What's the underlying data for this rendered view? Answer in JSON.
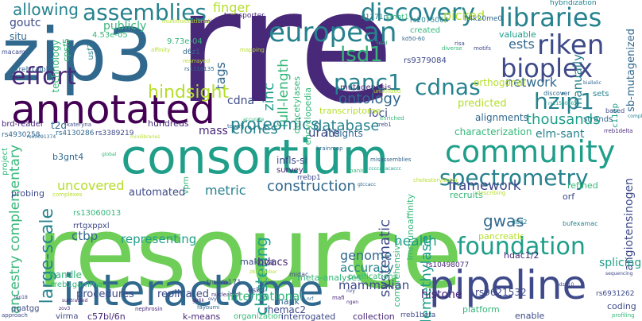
{
  "words": {
    "rre": "rre",
    "resource": "resource",
    "zip3": "zip3",
    "consortium": "consortium",
    "interactome": "interactome",
    "pipeline": "pipeline",
    "annotated": "annotated",
    "european": "european",
    "community": "community",
    "spectrometry": "spectrometry",
    "assemblies": "assemblies",
    "discovery": "discovery",
    "libraries": "libraries",
    "riken": "riken",
    "bioplex": "bioplex",
    "effort": "effort",
    "cdnas": "cdnas",
    "hzip1": "hzip1",
    "lsd1": "lsd1",
    "panc1": "panc1",
    "foundation": "foundation",
    "large_scale": "large-scale",
    "ancestry_complementary": "ancestry complementary",
    "allowing": "allowing",
    "goutc": "goutc",
    "full_length": "full-length",
    "zinc": "zinc",
    "tags": "tags",
    "hindsight": "hindsight",
    "finger": "finger",
    "picked": "picked",
    "publicly": "publicly",
    "proteomics": "proteomics",
    "network": "network",
    "thousands": "thousands",
    "elm_sant": "elm-sant",
    "ontology": "ontology",
    "loci": "loci",
    "database": "database",
    "cdna": "cdna",
    "clones": "clones",
    "mass": "mass",
    "urate": "urate",
    "clustering": "clustering",
    "construction": "construction",
    "framework": "framework",
    "metric": "metric",
    "uncovered": "uncovered",
    "ctbp": "ctbp",
    "gwas": "gwas",
    "representing": "representing",
    "health": "health",
    "genome": "genome",
    "accuracy": "accuracy",
    "systematic": "systematic",
    "demethylase": "demethylase",
    "mammalian": "mammalian",
    "splicing": "splicing",
    "hdacs": "hdacs",
    "international": "international",
    "procedures": "procedures",
    "replicated": "replicated",
    "histone": "histone",
    "k_means": "k-means",
    "c57bl6n": "c57bl/6n",
    "interrogated": "interrogated",
    "collection": "collection",
    "platform": "platform",
    "coding": "coding",
    "enable": "enable",
    "rhemac2": "rhemac2",
    "mapk": "mapk",
    "manually": "manually",
    "sb_mutagenized": "sb-mutagenized",
    "situ": "situ",
    "technology": "technology",
    "ests": "ests",
    "valuable": "valuable",
    "orthogonal": "orthogonal",
    "predicted": "predicted",
    "characterization": "characterization",
    "alignments": "alignments",
    "discover": "discover",
    "based": "based",
    "strands": "strands",
    "sets": "sets",
    "hybridization": "hybridization",
    "created": "created",
    "survey": "survey",
    "insights": "insights",
    "inflsi": "infls-si",
    "refined": "refined",
    "orf": "orf",
    "recruits": "recruits",
    "automated": "automated",
    "probing": "probing",
    "project": "project",
    "hundreds": "hundreds",
    "t2d": "t2d",
    "brd_reader": "brd-reader",
    "rreb1alpha": "rreb1alpha",
    "rreb1gamma": "rreb1gamma",
    "rreb1beta": "rreb1beta",
    "rrtgxppxl": "rrtgxppxl",
    "handle": "handle",
    "b3gnt4": "b3gnt4",
    "rs13060013": "rs13060013",
    "rs9621532": "rs9621532",
    "rs6931262": "rs6931262",
    "rs4930258": "rs4930258",
    "rs4130286": "rs4130286",
    "rs3389219": "rs3389219",
    "rs2075064": "rs2075064",
    "rs9379084": "rs9379084",
    "rs10498077": "rs10498077",
    "rs1118135": "rs1118135",
    "d1171n": "d1171n",
    "h4k20me0": "h4k20me0",
    "transporter": "transporter",
    "mutagenesis": "mutagenesis",
    "transcriptome": "transcriptome",
    "encyclopedia": "encyclopedia",
    "deacetylases": "deacetylases",
    "cpsf5": "cpsf5",
    "usf3": "usf3",
    "d6z1": "d6z1",
    "p_value1": "4.53e-05",
    "p_value2": "9.73e-04",
    "rrebp1": "rrebp1",
    "purifications": "purifications",
    "comprehensive": "comprehensive",
    "immunoaffinity": "immunoaffinity",
    "pancreatic": "pancreatic",
    "hdac12": "hdac1/2",
    "angiotensinogen": "angiotensinogen",
    "meta_analyses": "meta-analyses",
    "tmem171": "tmem171",
    "eskd": "eskd",
    "makova": "makova",
    "bufexamac": "bufexamac",
    "d8z2": "d8z2",
    "smbt1": "smbt1",
    "macam": "macam",
    "vprn": "vprn",
    "ggatgg": "ggatgg",
    "virma": "virma",
    "compleXome": "complexome",
    "rreb1delta": "rreb1delta",
    "kd50_60": "kd50-60",
    "biallelic": "biallelic",
    "kateryna": "kateryna",
    "torum": "torum",
    "fayoumi": "fayoumi",
    "nephrosin": "nephrosin",
    "zov3": "zov3",
    "lap18": "lap18",
    "midac": "midac",
    "nucleated": "nucleated",
    "brainmap": "brainmap",
    "enriched": "enriched",
    "misassemblies": "misassemblies",
    "cholesterylester": "cholesterylester",
    "describing": "describing",
    "organization": "organization",
    "approach": "approach",
    "profiling": "profiling",
    "sequencing": "sequencing",
    "global": "global",
    "panin": "panin",
    "unutilized": "unutilized",
    "diverse": "diverse",
    "motifs": "motifs",
    "minilibraries": "minilibraries",
    "mir_143145": "mir-143/145",
    "multiinstitutional": "multiinstitutional",
    "accurate": "accurate",
    "rearrayed": "rearrayed",
    "affinity": "affinity",
    "mapping": "mapping",
    "rs10091374": "rs10091374",
    "rs21560465": "rs21560465",
    "g96k": "g96k",
    "poo": "poo",
    "mafi": "mafi",
    "subtracted": "subtracted",
    "ovy": "ovy",
    "rreb1": "rreb1",
    "gtccacc": "gtccacc",
    "c11ep": "c11ep",
    "ccccaaacaccc": "ccccaaacaccc",
    "nvy": "nvy",
    "nrf": "nrf",
    "read": "read",
    "risa": "risa",
    "complexes": "complexes",
    "z8_member": "z8-member",
    "pdzd10": "pdzd10",
    "ngen": "ngen"
  }
}
